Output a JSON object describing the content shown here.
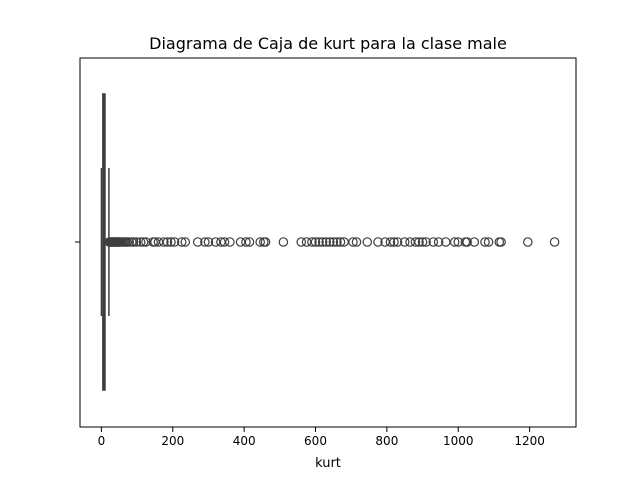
{
  "chart_data": {
    "type": "box",
    "title": "Diagrama de Caja de kurt para la clase male",
    "xlabel": "kurt",
    "ylabel": "",
    "xlim": [
      -60,
      1330
    ],
    "xticks": [
      0,
      200,
      400,
      600,
      800,
      1000,
      1200
    ],
    "xtick_labels": [
      "0",
      "200",
      "400",
      "600",
      "800",
      "1000",
      "1200"
    ],
    "grid": false,
    "box": {
      "q1": 4,
      "median": 6,
      "q3": 10,
      "whisker_low": 0,
      "whisker_high": 21
    },
    "outliers": [
      22,
      24,
      26,
      28,
      30,
      32,
      34,
      36,
      38,
      40,
      42,
      44,
      46,
      48,
      50,
      53,
      56,
      60,
      64,
      68,
      72,
      78,
      85,
      90,
      98,
      110,
      118,
      125,
      145,
      150,
      160,
      175,
      185,
      195,
      205,
      225,
      235,
      270,
      290,
      300,
      320,
      335,
      345,
      360,
      390,
      405,
      415,
      445,
      455,
      460,
      510,
      560,
      575,
      590,
      600,
      610,
      620,
      630,
      640,
      650,
      660,
      670,
      680,
      705,
      715,
      745,
      775,
      795,
      810,
      820,
      830,
      850,
      865,
      880,
      890,
      900,
      910,
      930,
      945,
      965,
      990,
      1000,
      1020,
      1025,
      1045,
      1075,
      1085,
      1115,
      1120,
      1195,
      1270
    ],
    "colors": {
      "box_edge": "#3f3f3f",
      "outlier_edge": "#3f3f3f",
      "box_fill": "#4c72b0"
    }
  }
}
